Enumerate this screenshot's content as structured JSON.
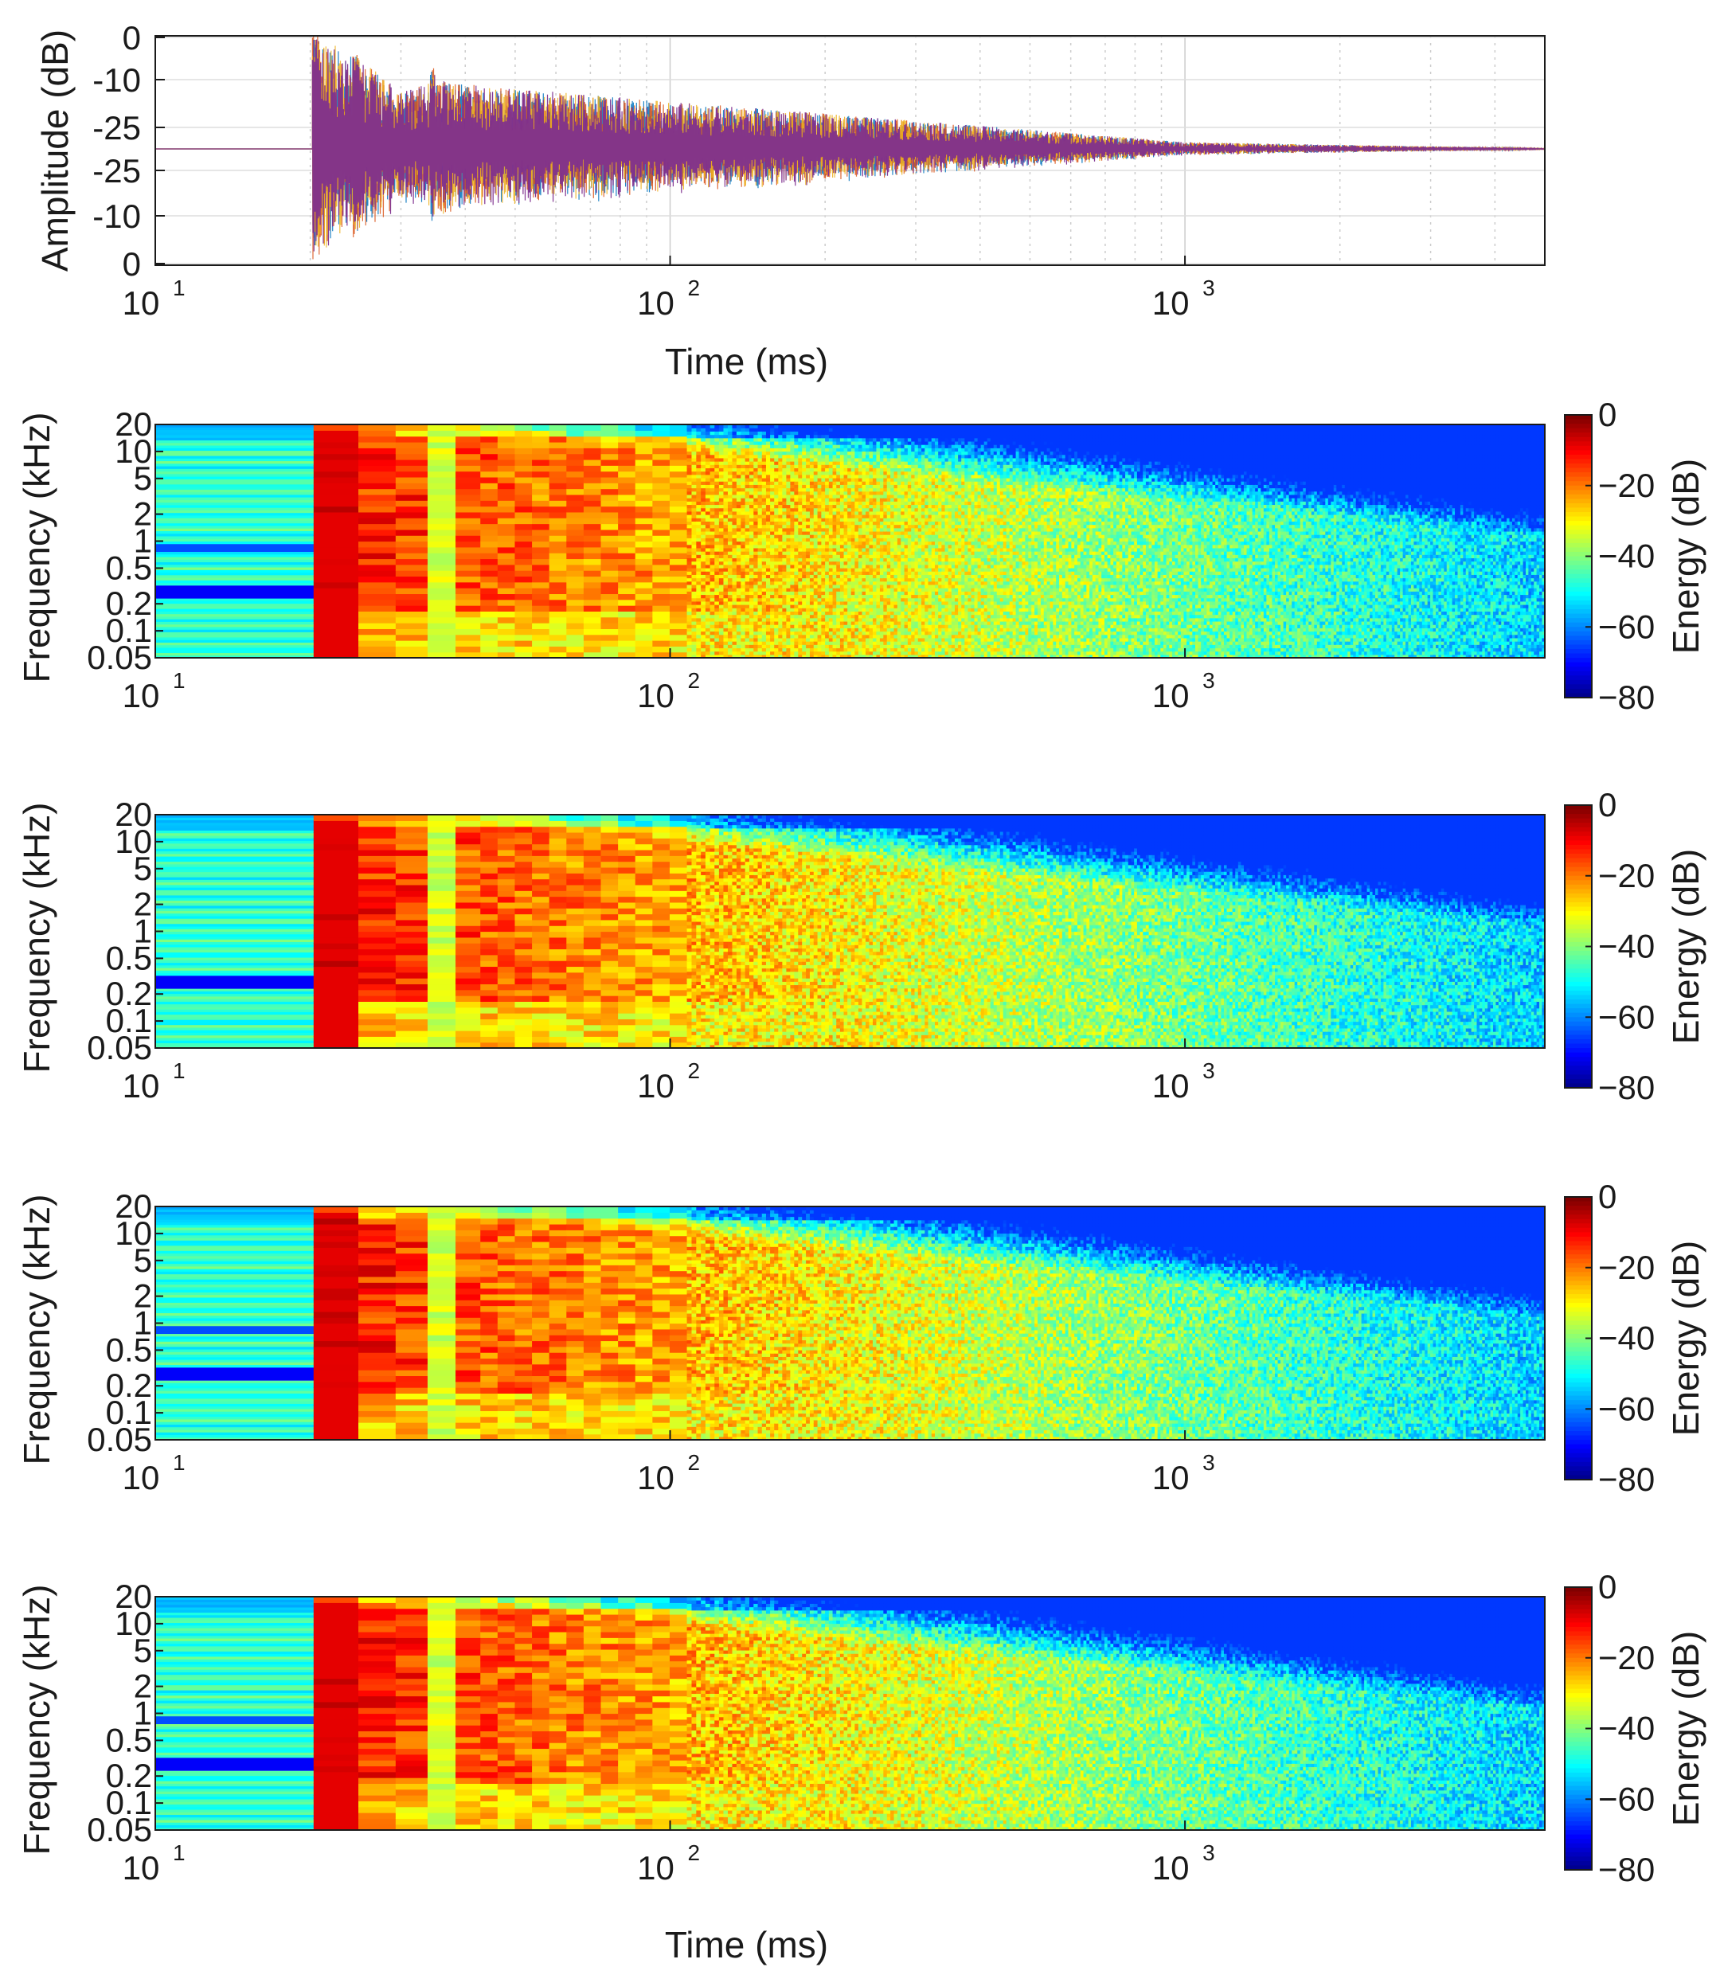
{
  "colors": {
    "series": [
      "#0072BD",
      "#D95319",
      "#EDB120",
      "#7E2F8E"
    ],
    "axis": "#1a1a1a",
    "grid": "#dddddd"
  },
  "chart_data": [
    {
      "type": "line",
      "title": "",
      "xlabel": "Time (ms)",
      "ylabel": "Amplitude (dB)",
      "xscale": "log",
      "xlim": [
        10,
        5000
      ],
      "x_ticks": [
        {
          "base": "10",
          "exp": "1"
        },
        {
          "base": "10",
          "exp": "2"
        },
        {
          "base": "10",
          "exp": "3"
        }
      ],
      "y_tick_labels": [
        "0",
        "-10",
        "-25",
        "-25",
        "-10",
        "0"
      ],
      "description_series": 4,
      "envelope": [
        {
          "t": 20.5,
          "peak": 1.0
        },
        {
          "t": 25,
          "peak": 0.8
        },
        {
          "t": 30,
          "peak": 0.5
        },
        {
          "t": 35,
          "peak": 0.6
        },
        {
          "t": 45,
          "peak": 0.55
        },
        {
          "t": 100,
          "peak": 0.42
        },
        {
          "t": 300,
          "peak": 0.25
        },
        {
          "t": 1000,
          "peak": 0.06
        },
        {
          "t": 5000,
          "peak": 0.005
        }
      ]
    },
    {
      "type": "heatmap",
      "xlabel": "",
      "ylabel": "Frequency (kHz)",
      "xscale": "log",
      "yscale": "log",
      "xlim": [
        10,
        5000
      ],
      "ylim": [
        0.05,
        20
      ],
      "y_tick_labels": [
        "20",
        "10",
        "5",
        "2",
        "1",
        "0.5",
        "0.2",
        "0.1",
        "0.05"
      ],
      "x_ticks": [
        {
          "base": "10",
          "exp": "1"
        },
        {
          "base": "10",
          "exp": "2"
        },
        {
          "base": "10",
          "exp": "3"
        }
      ],
      "colorbar": {
        "label": "Energy (dB)",
        "ticks": [
          "0",
          "-20",
          "-40",
          "-60",
          "-80"
        ],
        "range": [
          -80,
          0
        ]
      }
    },
    {
      "type": "heatmap",
      "xlabel": "",
      "ylabel": "Frequency (kHz)",
      "xscale": "log",
      "yscale": "log",
      "xlim": [
        10,
        5000
      ],
      "ylim": [
        0.05,
        20
      ],
      "y_tick_labels": [
        "20",
        "10",
        "5",
        "2",
        "1",
        "0.5",
        "0.2",
        "0.1",
        "0.05"
      ],
      "x_ticks": [
        {
          "base": "10",
          "exp": "1"
        },
        {
          "base": "10",
          "exp": "2"
        },
        {
          "base": "10",
          "exp": "3"
        }
      ],
      "colorbar": {
        "label": "Energy (dB)",
        "ticks": [
          "0",
          "-20",
          "-40",
          "-60",
          "-80"
        ],
        "range": [
          -80,
          0
        ]
      }
    },
    {
      "type": "heatmap",
      "xlabel": "",
      "ylabel": "Frequency (kHz)",
      "xscale": "log",
      "yscale": "log",
      "xlim": [
        10,
        5000
      ],
      "ylim": [
        0.05,
        20
      ],
      "y_tick_labels": [
        "20",
        "10",
        "5",
        "2",
        "1",
        "0.5",
        "0.2",
        "0.1",
        "0.05"
      ],
      "x_ticks": [
        {
          "base": "10",
          "exp": "1"
        },
        {
          "base": "10",
          "exp": "2"
        },
        {
          "base": "10",
          "exp": "3"
        }
      ],
      "colorbar": {
        "label": "Energy (dB)",
        "ticks": [
          "0",
          "-20",
          "-40",
          "-60",
          "-80"
        ],
        "range": [
          -80,
          0
        ]
      }
    },
    {
      "type": "heatmap",
      "xlabel": "Time (ms)",
      "ylabel": "Frequency (kHz)",
      "xscale": "log",
      "yscale": "log",
      "xlim": [
        10,
        5000
      ],
      "ylim": [
        0.05,
        20
      ],
      "y_tick_labels": [
        "20",
        "10",
        "5",
        "2",
        "1",
        "0.5",
        "0.2",
        "0.1",
        "0.05"
      ],
      "x_ticks": [
        {
          "base": "10",
          "exp": "1"
        },
        {
          "base": "10",
          "exp": "2"
        },
        {
          "base": "10",
          "exp": "3"
        }
      ],
      "colorbar": {
        "label": "Energy (dB)",
        "ticks": [
          "0",
          "-20",
          "-40",
          "-60",
          "-80"
        ],
        "range": [
          -80,
          0
        ]
      }
    }
  ]
}
